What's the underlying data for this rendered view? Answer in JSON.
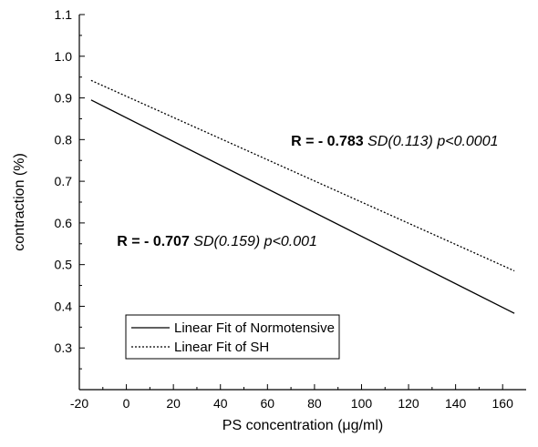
{
  "chart_data": {
    "type": "line",
    "xlabel": "PS concentration (μg/ml)",
    "ylabel": "contraction (%)",
    "xlim": [
      -20,
      170
    ],
    "ylim": [
      0.2,
      1.1
    ],
    "xticks": [
      -20,
      0,
      20,
      40,
      60,
      80,
      100,
      120,
      140,
      160
    ],
    "yticks": [
      0.3,
      0.4,
      0.5,
      0.6,
      0.7,
      0.8,
      0.9,
      1.0,
      1.1
    ],
    "xtick_labels": [
      "-20",
      "0",
      "20",
      "40",
      "60",
      "80",
      "100",
      "120",
      "140",
      "160"
    ],
    "ytick_labels": [
      "0.3",
      "0.4",
      "0.5",
      "0.6",
      "0.7",
      "0.8",
      "0.9",
      "1.0",
      "1.1"
    ],
    "grid": false,
    "legend_position": "bottom-left",
    "series": [
      {
        "name": "Linear Fit of Normotensive",
        "style": "solid",
        "color": "#000000",
        "x": [
          -15,
          165
        ],
        "y": [
          0.895,
          0.383
        ]
      },
      {
        "name": "Linear Fit of SH",
        "style": "dotted",
        "color": "#000000",
        "x": [
          -15,
          165
        ],
        "y": [
          0.942,
          0.485
        ]
      }
    ],
    "annotations": [
      {
        "series": "Linear Fit of SH",
        "r_label": "R = - 0.783",
        "sd_label": "SD(0.113)",
        "p_label": "p<0.0001",
        "at": [
          70,
          0.785
        ]
      },
      {
        "series": "Linear Fit of Normotensive",
        "r_label": "R = - 0.707",
        "sd_label": "SD(0.159)",
        "p_label": "p<0.001",
        "at": [
          -4,
          0.545
        ]
      }
    ]
  }
}
